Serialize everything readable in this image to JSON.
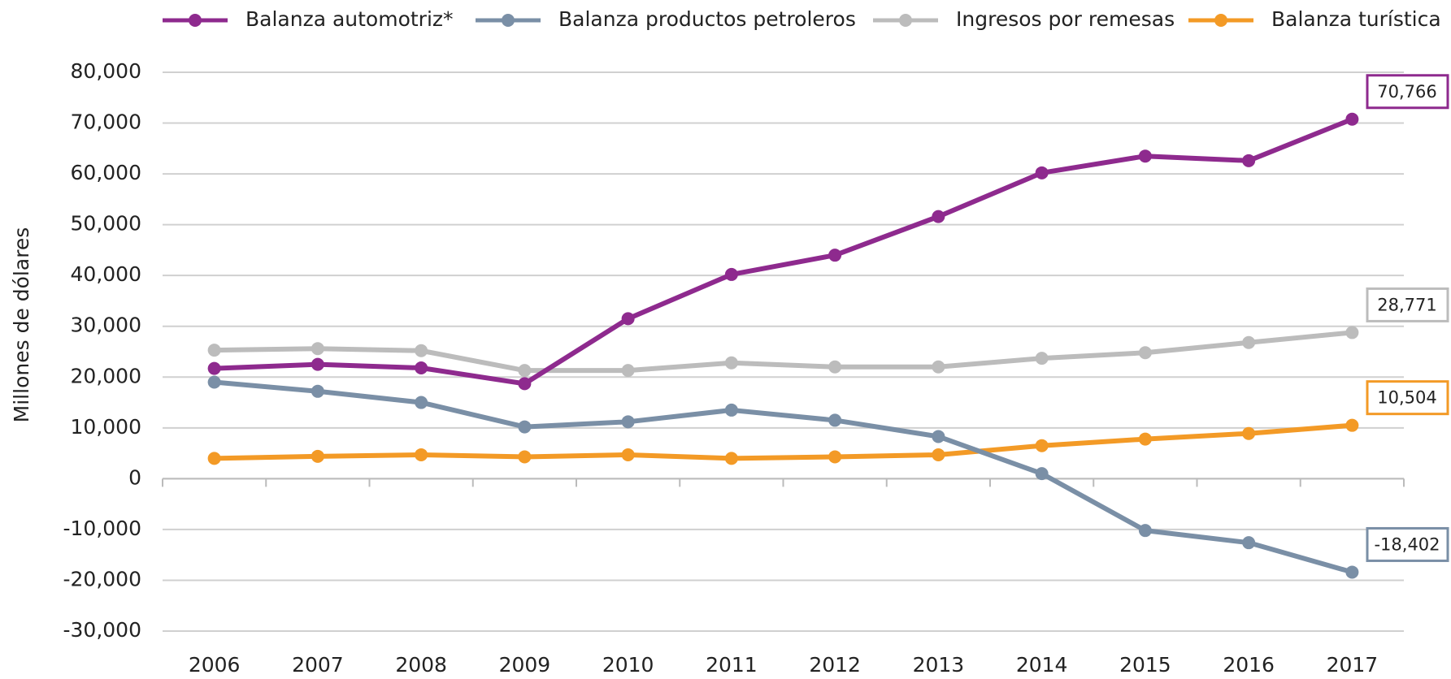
{
  "chart_data": {
    "type": "line",
    "y_label": "Millones de dólares",
    "categories": [
      "2006",
      "2007",
      "2008",
      "2009",
      "2010",
      "2011",
      "2012",
      "2013",
      "2014",
      "2015",
      "2016",
      "2017"
    ],
    "series": [
      {
        "name": "Balanza automotriz*",
        "color": "#8e2a8e",
        "values": [
          21700,
          22500,
          21800,
          18700,
          31500,
          40200,
          44000,
          51600,
          60200,
          63500,
          62600,
          70766
        ],
        "value_labels": [
          null,
          null,
          null,
          null,
          null,
          null,
          null,
          null,
          null,
          null,
          null,
          "70,766"
        ]
      },
      {
        "name": "Balanza productos petroleros",
        "color": "#7a8fa6",
        "values": [
          19000,
          17200,
          15000,
          10200,
          11200,
          13500,
          11500,
          8300,
          1000,
          -10200,
          -12600,
          -18402
        ],
        "value_labels": [
          null,
          null,
          null,
          null,
          null,
          null,
          null,
          null,
          null,
          null,
          null,
          "-18,402"
        ]
      },
      {
        "name": "Ingresos por remesas",
        "color": "#bcbcbc",
        "values": [
          25300,
          25600,
          25200,
          21300,
          21300,
          22800,
          22000,
          22000,
          23700,
          24800,
          26800,
          28771
        ],
        "value_labels": [
          null,
          null,
          null,
          null,
          null,
          null,
          null,
          null,
          null,
          null,
          null,
          "28,771"
        ]
      },
      {
        "name": "Balanza turística",
        "color": "#f39a26",
        "values": [
          4000,
          4400,
          4700,
          4300,
          4700,
          4000,
          4300,
          4700,
          6500,
          7800,
          8900,
          10504
        ],
        "value_labels": [
          null,
          null,
          null,
          null,
          null,
          null,
          null,
          null,
          null,
          null,
          null,
          "10,504"
        ]
      }
    ],
    "ylim": [
      -30000,
      80000
    ],
    "yticks": [
      {
        "value": -30000,
        "label": "-30,000"
      },
      {
        "value": -20000,
        "label": "-20,000"
      },
      {
        "value": -10000,
        "label": "-10,000"
      },
      0,
      {
        "value": 10000,
        "label": "10,000"
      },
      {
        "value": 20000,
        "label": "20,000"
      },
      {
        "value": 30000,
        "label": "30,000"
      },
      {
        "value": 40000,
        "label": "40,000"
      },
      {
        "value": 50000,
        "label": "50,000"
      },
      {
        "value": 60000,
        "label": "60,000"
      },
      {
        "value": 70000,
        "label": "70,000"
      },
      {
        "value": 80000,
        "label": "80,000"
      }
    ],
    "grid": true,
    "legend": "top"
  }
}
